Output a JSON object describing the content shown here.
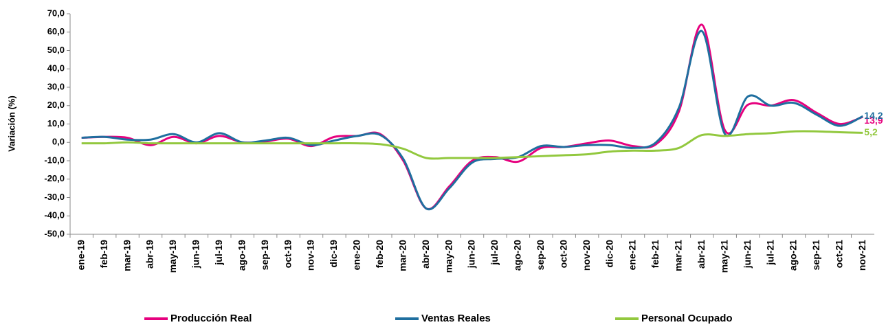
{
  "chart_data": {
    "type": "line",
    "y_label": "Variación (%)",
    "categories": [
      "ene-19",
      "feb-19",
      "mar-19",
      "abr-19",
      "may-19",
      "jun-19",
      "jul-19",
      "ago-19",
      "sep-19",
      "oct-19",
      "nov-19",
      "dic-19",
      "ene-20",
      "feb-20",
      "mar-20",
      "abr-20",
      "may-20",
      "jun-20",
      "jul-20",
      "ago-20",
      "sep-20",
      "oct-20",
      "nov-20",
      "dic-20",
      "ene-21",
      "feb-21",
      "mar-21",
      "abr-21",
      "may-21",
      "jun-21",
      "jul-21",
      "ago-21",
      "sep-21",
      "oct-21",
      "nov-21"
    ],
    "series": [
      {
        "name": "Producción Real",
        "color": "#e6007e",
        "values": [
          2.5,
          3,
          2.5,
          -1.5,
          3,
          -0.5,
          3.5,
          0,
          0.5,
          2,
          -2,
          3,
          3.5,
          4.5,
          -10,
          -36,
          -24,
          -10,
          -8,
          -10.5,
          -3,
          -2.5,
          -0.5,
          1,
          -2,
          -1,
          17,
          64,
          6.5,
          20.5,
          20,
          23,
          16,
          10,
          13.9
        ],
        "value_labels": [
          null,
          null,
          null,
          null,
          null,
          null,
          null,
          null,
          null,
          null,
          null,
          null,
          null,
          null,
          null,
          null,
          null,
          null,
          null,
          null,
          null,
          null,
          null,
          null,
          null,
          null,
          null,
          null,
          null,
          null,
          null,
          null,
          null,
          null,
          "13,9"
        ]
      },
      {
        "name": "Ventas Reales",
        "color": "#1f6f9f",
        "values": [
          2.5,
          3,
          1.5,
          1.5,
          4.5,
          0,
          5,
          0,
          1,
          2.5,
          -1.5,
          1,
          3.5,
          4,
          -9,
          -36,
          -25,
          -11,
          -9,
          -8,
          -2,
          -2.5,
          -1.5,
          -1.5,
          -3,
          0,
          19,
          60.5,
          4.5,
          25,
          20,
          21.5,
          15,
          9,
          14.2
        ],
        "value_labels": [
          null,
          null,
          null,
          null,
          null,
          null,
          null,
          null,
          null,
          null,
          null,
          null,
          null,
          null,
          null,
          null,
          null,
          null,
          null,
          null,
          null,
          null,
          null,
          null,
          null,
          null,
          null,
          null,
          null,
          null,
          null,
          null,
          null,
          null,
          "14,2"
        ]
      },
      {
        "name": "Personal Ocupado",
        "color": "#92c83e",
        "values": [
          -0.5,
          -0.5,
          0,
          -0.5,
          -0.5,
          -0.5,
          -0.5,
          -0.5,
          -0.5,
          -0.5,
          -0.5,
          -0.5,
          -0.5,
          -1,
          -3.5,
          -8.5,
          -8.5,
          -8.5,
          -8.5,
          -8,
          -7.5,
          -7,
          -6.5,
          -5,
          -4.5,
          -4.5,
          -3,
          4,
          3.5,
          4.5,
          5,
          6,
          6,
          5.5,
          5.2
        ],
        "value_labels": [
          null,
          null,
          null,
          null,
          null,
          null,
          null,
          null,
          null,
          null,
          null,
          null,
          null,
          null,
          null,
          null,
          null,
          null,
          null,
          null,
          null,
          null,
          null,
          null,
          null,
          null,
          null,
          null,
          null,
          null,
          null,
          null,
          null,
          null,
          "5,2"
        ]
      }
    ],
    "ylim": [
      -50,
      70
    ],
    "yticks": [
      {
        "value": -50,
        "label": "-50,0"
      },
      {
        "value": -40,
        "label": "-40,0"
      },
      {
        "value": -30,
        "label": "-30,0"
      },
      {
        "value": -20,
        "label": "-20,0"
      },
      {
        "value": -10,
        "label": "-10,0"
      },
      {
        "value": 0,
        "label": "0,0"
      },
      {
        "value": 10,
        "label": "10,0"
      },
      {
        "value": 20,
        "label": "20,0"
      },
      {
        "value": 30,
        "label": "30,0"
      },
      {
        "value": 40,
        "label": "40,0"
      },
      {
        "value": 50,
        "label": "50,0"
      },
      {
        "value": 60,
        "label": "60,0"
      },
      {
        "value": 70,
        "label": "70,0"
      }
    ],
    "legend": "bottom"
  }
}
